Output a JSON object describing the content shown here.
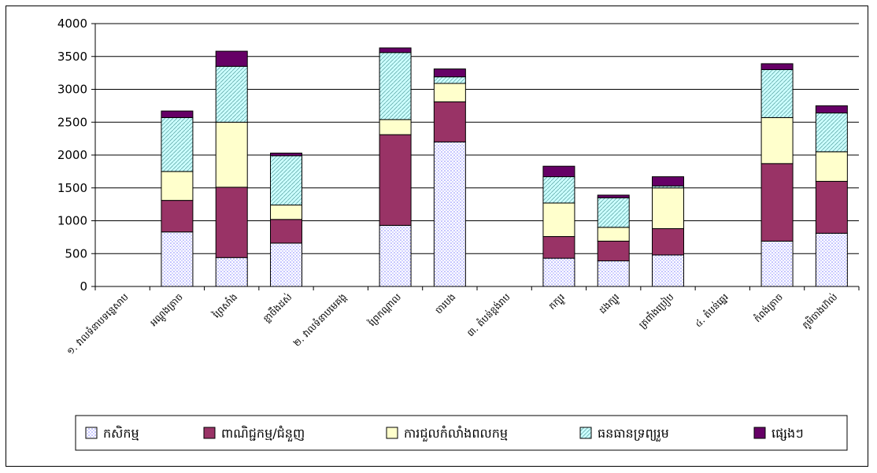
{
  "chart_data": {
    "type": "bar",
    "stacked": true,
    "title": "",
    "xlabel": "",
    "ylabel": "",
    "ylim": [
      0,
      4000
    ],
    "yticks": [
      0,
      500,
      1000,
      1500,
      2000,
      2500,
      3000,
      3500,
      4000
    ],
    "grid": "horizontal",
    "legend_position": "bottom",
    "categories": [
      "១. វាលទំនាបទន្លេសាប",
      "អណ្តូងត្រាច",
      "ព្រៃសាំង",
      "ខ្លាចឹងដស់",
      "២. វាលទំនាបមេគង្គ",
      "ព្រៃកណ្តាល",
      "ចារបង",
      "៣. តំបន់ខ្ពង់រាប",
      "កក្បូរ",
      "ដងក្បូរ",
      "ត្រពាំងប្រៀប",
      "៤. តំបន់ឆ្នេរ",
      "កំពង់ត្រាច",
      "ភូមិចាងហ៊ល់"
    ],
    "series": [
      {
        "name": "កសិកម្ម",
        "color": "#ccccff",
        "values": [
          0,
          830,
          440,
          660,
          0,
          930,
          2200,
          0,
          430,
          390,
          480,
          0,
          690,
          810
        ]
      },
      {
        "name": "ពាណិជ្ជកម្ម/ជំនួញ",
        "color": "#993366",
        "values": [
          0,
          480,
          1070,
          360,
          0,
          1380,
          610,
          0,
          330,
          300,
          400,
          0,
          1180,
          790
        ]
      },
      {
        "name": "ការជួលកំលាំងពលកម្ម",
        "color": "#ffffcc",
        "values": [
          0,
          440,
          990,
          220,
          0,
          230,
          280,
          0,
          510,
          210,
          620,
          0,
          700,
          450
        ]
      },
      {
        "name": "ធនធានទ្រព្យរួម",
        "color": "#ccffff",
        "values": [
          0,
          820,
          850,
          750,
          0,
          1020,
          100,
          0,
          400,
          450,
          30,
          0,
          730,
          590
        ]
      },
      {
        "name": "ផ្សេងៗ",
        "color": "#660066",
        "values": [
          0,
          100,
          230,
          40,
          0,
          70,
          120,
          0,
          160,
          40,
          140,
          0,
          90,
          110
        ]
      }
    ]
  }
}
